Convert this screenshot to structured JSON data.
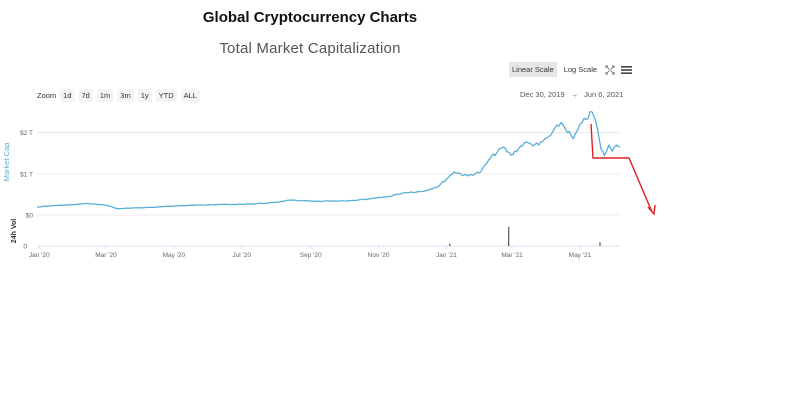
{
  "page": {
    "title": "Global Cryptocurrency Charts"
  },
  "chart_header": {
    "title": "Total Market Capitalization",
    "scale_buttons": [
      "Linear Scale",
      "Log Scale"
    ],
    "active_scale": "Linear Scale",
    "zoom_label": "Zoom",
    "zoom_buttons": [
      "1d",
      "7d",
      "1m",
      "3m",
      "1y",
      "YTD",
      "ALL"
    ],
    "date_from": "Dec 30, 2019",
    "date_sep": "→",
    "date_to": "Jun 6, 2021"
  },
  "colors": {
    "line": "#5aaed8",
    "volume": "#333333",
    "annotation": "#e02020",
    "axis_label": "#5aaed8"
  },
  "chart_data": {
    "type": "line",
    "title": "Total Market Capitalization",
    "ylabel": "Market Cap",
    "ylabel2": "24h Vol",
    "yticks": [
      "$0",
      "$1 T",
      "$2 T"
    ],
    "y2ticks": [
      "0"
    ],
    "xticks": [
      "Jan '20",
      "Mar '20",
      "May '20",
      "Jul '20",
      "Sep '20",
      "Nov '20",
      "Jan '21",
      "Mar '21",
      "May '21"
    ],
    "ylim": [
      0,
      2.6
    ],
    "grid": true,
    "series": [
      {
        "values": [
          [
            "2019-12-30",
            0.19
          ],
          [
            "2020-01-15",
            0.23
          ],
          [
            "2020-02-01",
            0.25
          ],
          [
            "2020-02-14",
            0.28
          ],
          [
            "2020-03-01",
            0.24
          ],
          [
            "2020-03-12",
            0.15
          ],
          [
            "2020-03-25",
            0.17
          ],
          [
            "2020-04-15",
            0.19
          ],
          [
            "2020-05-01",
            0.22
          ],
          [
            "2020-06-01",
            0.25
          ],
          [
            "2020-07-01",
            0.26
          ],
          [
            "2020-07-25",
            0.29
          ],
          [
            "2020-08-15",
            0.36
          ],
          [
            "2020-09-05",
            0.33
          ],
          [
            "2020-10-01",
            0.34
          ],
          [
            "2020-10-25",
            0.39
          ],
          [
            "2020-11-10",
            0.45
          ],
          [
            "2020-11-25",
            0.55
          ],
          [
            "2020-12-10",
            0.57
          ],
          [
            "2020-12-25",
            0.7
          ],
          [
            "2021-01-08",
            1.05
          ],
          [
            "2021-01-20",
            0.95
          ],
          [
            "2021-02-01",
            1.05
          ],
          [
            "2021-02-10",
            1.4
          ],
          [
            "2021-02-21",
            1.65
          ],
          [
            "2021-02-28",
            1.45
          ],
          [
            "2021-03-12",
            1.75
          ],
          [
            "2021-03-25",
            1.7
          ],
          [
            "2021-04-05",
            1.95
          ],
          [
            "2021-04-14",
            2.25
          ],
          [
            "2021-04-25",
            1.85
          ],
          [
            "2021-05-03",
            2.25
          ],
          [
            "2021-05-12",
            2.5
          ],
          [
            "2021-05-15",
            2.3
          ],
          [
            "2021-05-20",
            1.6
          ],
          [
            "2021-05-23",
            1.45
          ],
          [
            "2021-05-27",
            1.7
          ],
          [
            "2021-05-30",
            1.55
          ],
          [
            "2021-06-03",
            1.7
          ],
          [
            "2021-06-06",
            1.65
          ]
        ]
      }
    ],
    "volume": [
      [
        "2021-01-04",
        0.1
      ],
      [
        "2021-02-26",
        0.8
      ],
      [
        "2021-05-19",
        0.15
      ]
    ]
  }
}
